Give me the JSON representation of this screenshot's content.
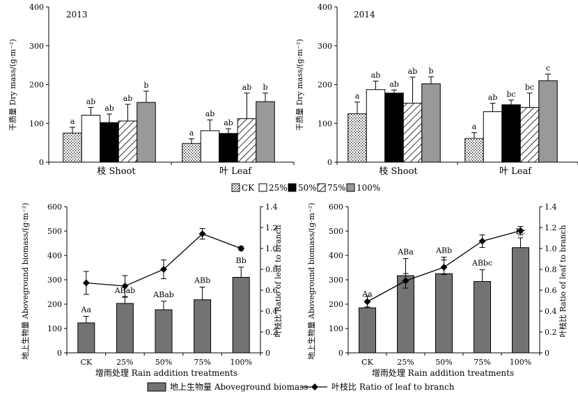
{
  "chart_data": [
    {
      "id": "p1",
      "type": "bar",
      "year_label": "2013",
      "ylabel": "干质量 Dry mass/(g·m⁻²)",
      "ylim": [
        0,
        400
      ],
      "yticks": [
        0,
        100,
        200,
        300,
        400
      ],
      "groups": [
        "枝 Shoot",
        "叶 Leaf"
      ],
      "series": [
        {
          "name": "CK",
          "values": [
            75,
            48
          ],
          "errors": [
            15,
            12
          ],
          "letters": [
            "a",
            "a"
          ]
        },
        {
          "name": "25%",
          "values": [
            121,
            81
          ],
          "errors": [
            20,
            28
          ],
          "letters": [
            "ab",
            "ab"
          ]
        },
        {
          "name": "50%",
          "values": [
            102,
            74
          ],
          "errors": [
            22,
            12
          ],
          "letters": [
            "ab",
            "ab"
          ]
        },
        {
          "name": "75%",
          "values": [
            106,
            112
          ],
          "errors": [
            43,
            66
          ],
          "letters": [
            "ab",
            "ab"
          ]
        },
        {
          "name": "100%",
          "values": [
            154,
            156
          ],
          "errors": [
            29,
            22
          ],
          "letters": [
            "b",
            "b"
          ]
        }
      ]
    },
    {
      "id": "p2",
      "type": "bar",
      "year_label": "2014",
      "ylabel": "干质量 Dry mass/(g·m⁻²)",
      "ylim": [
        0,
        400
      ],
      "yticks": [
        0,
        100,
        200,
        300,
        400
      ],
      "groups": [
        "枝 Shoot",
        "叶 Leaf"
      ],
      "series": [
        {
          "name": "CK",
          "values": [
            125,
            61
          ],
          "errors": [
            30,
            15
          ],
          "letters": [
            "a",
            "a"
          ]
        },
        {
          "name": "25%",
          "values": [
            187,
            130
          ],
          "errors": [
            22,
            22
          ],
          "letters": [
            "ab",
            "ab"
          ]
        },
        {
          "name": "50%",
          "values": [
            178,
            148
          ],
          "errors": [
            8,
            12
          ],
          "letters": [
            "ab",
            "bc"
          ]
        },
        {
          "name": "75%",
          "values": [
            152,
            141
          ],
          "errors": [
            67,
            37
          ],
          "letters": [
            "ab",
            "bc"
          ]
        },
        {
          "name": "100%",
          "values": [
            202,
            210
          ],
          "errors": [
            18,
            17
          ],
          "letters": [
            "b",
            "c"
          ]
        }
      ]
    },
    {
      "id": "p3",
      "type": "bar+line",
      "categories": [
        "CK",
        "25%",
        "50%",
        "75%",
        "100%"
      ],
      "xlabel": "增雨处理 Rain addition treatments",
      "ylabel": "地上生物量 Aboveground biomass/(g·m⁻²)",
      "y2label": "叶枝比 Ratio of leaf to branch",
      "ylim": [
        0,
        600
      ],
      "yticks": [
        0,
        100,
        200,
        300,
        400,
        500,
        600
      ],
      "y2lim": [
        0,
        1.4
      ],
      "y2ticks": [
        "0",
        "0.2",
        "0.4",
        "0.6",
        "0.8",
        "1.0",
        "1.2",
        "1.4"
      ],
      "bars": {
        "values": [
          123,
          203,
          177,
          218,
          310
        ],
        "errors": [
          27,
          25,
          35,
          52,
          42
        ],
        "letters": [
          "Aa",
          "ABab",
          "ABab",
          "ABb",
          "Bb"
        ]
      },
      "line": {
        "values": [
          0.67,
          0.64,
          0.8,
          1.14,
          1.0
        ],
        "errors": [
          0.11,
          0.1,
          0.09,
          0.05,
          0.02
        ]
      }
    },
    {
      "id": "p4",
      "type": "bar+line",
      "categories": [
        "CK",
        "25%",
        "50%",
        "75%",
        "100%"
      ],
      "xlabel": "增雨处理 Rain addition treatments",
      "ylabel": "地上生物量 Aboveground biomass/(g·m⁻²)",
      "y2label": "叶枝比 Ratio of leaf to branch",
      "ylim": [
        0,
        600
      ],
      "yticks": [
        0,
        100,
        200,
        300,
        400,
        500,
        600
      ],
      "y2lim": [
        0,
        1.4
      ],
      "y2ticks": [
        "0",
        "0.2",
        "0.4",
        "0.6",
        "0.8",
        "1.0",
        "1.2",
        "1.4"
      ],
      "bars": {
        "values": [
          185,
          317,
          325,
          293,
          432
        ],
        "errors": [
          30,
          70,
          68,
          48,
          40
        ],
        "letters": [
          "Aa",
          "ABa",
          "ABb",
          "ABbc",
          "Bc"
        ]
      },
      "line": {
        "values": [
          0.49,
          0.69,
          0.82,
          1.07,
          1.17
        ],
        "errors": [
          0.05,
          0.07,
          0.07,
          0.06,
          0.04
        ]
      }
    }
  ],
  "legend_top": [
    "CK",
    "25%",
    "50%",
    "75%",
    "100%"
  ],
  "legend_bottom": {
    "bar": "地上生物量 Aboveground biomass",
    "line": "叶枝比 Ratio of leaf to branch"
  }
}
